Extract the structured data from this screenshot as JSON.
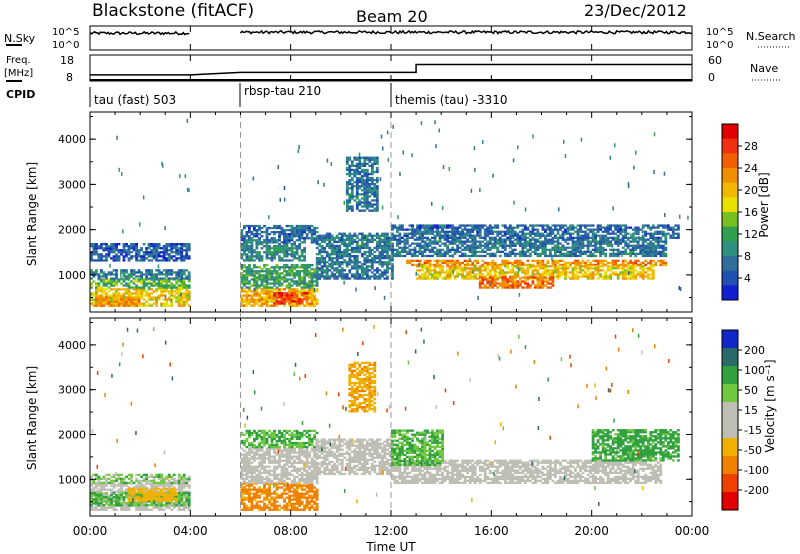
{
  "header": {
    "station": "Blackstone (fitACF)",
    "beam": "Beam 20",
    "date": "23/Dec/2012"
  },
  "nsky_panel": {
    "left_label": "N.Sky",
    "right_label": "N.Search",
    "left_ticks": [
      "10^5",
      "10^0"
    ],
    "right_ticks": [
      "10^5",
      "10^0"
    ]
  },
  "freq_panel": {
    "left_label_1": "Freq.",
    "left_label_2": "[MHz]",
    "left_ticks": [
      "18",
      "8"
    ],
    "right_label": "Nave",
    "right_ticks": [
      "60",
      "0"
    ]
  },
  "cpid_panel": {
    "label": "CPID",
    "modes": [
      "tau (fast) 503",
      "rbsp-tau 210",
      "themis (tau) -3310"
    ]
  },
  "power_panel": {
    "ylabel": "Slant Range [km]",
    "y_ticks": [
      "4000",
      "3000",
      "2000",
      "1000"
    ],
    "colorbar_label": "Power [dB]",
    "colorbar_ticks": [
      "28",
      "24",
      "20",
      "16",
      "12",
      "8",
      "4"
    ],
    "colorbar_colors": [
      "#e00000",
      "#f03010",
      "#f06000",
      "#f09000",
      "#f0b800",
      "#e8e000",
      "#78c020",
      "#30a050",
      "#309080",
      "#306e9c",
      "#2050b0",
      "#1020d0"
    ]
  },
  "velocity_panel": {
    "ylabel": "Slant Range [km]",
    "y_ticks": [
      "4000",
      "3000",
      "2000",
      "1000"
    ],
    "colorbar_label": "Velocity [m s⁻¹]",
    "colorbar_ticks": [
      "200",
      "100",
      "50",
      "15",
      "-15",
      "-50",
      "-100",
      "-200"
    ],
    "colorbar_colors": [
      "#1028c8",
      "#2a6a68",
      "#30a040",
      "#70c840",
      "#bebeb4",
      "#bebeb4",
      "#f0b000",
      "#f08000",
      "#f04000",
      "#e00000"
    ]
  },
  "time_axis": {
    "xlabel": "Time UT",
    "tick_labels": [
      "00:00",
      "04:00",
      "08:00",
      "12:00",
      "16:00",
      "20:00",
      "00:00"
    ]
  },
  "chart_data": {
    "type": "heatmap",
    "x_range_hours": [
      0,
      24
    ],
    "y_range_km": [
      180,
      4600
    ],
    "mode_changes_hours": [
      6,
      12
    ],
    "data_gap_hours": [
      4,
      6
    ],
    "nave_step_hour": 13,
    "freq_mhz": [
      {
        "start": 0,
        "end": 4,
        "value": 10
      },
      {
        "start": 6,
        "end": 24,
        "value": 10
      }
    ],
    "nave": [
      {
        "start": 0,
        "end": 4,
        "value": 14
      },
      {
        "start": 6,
        "end": 13,
        "value": 20
      },
      {
        "start": 13,
        "end": 24,
        "value": 38
      }
    ],
    "nsky_level": [
      {
        "start": 0,
        "end": 4,
        "value": 3.5
      },
      {
        "start": 6,
        "end": 24,
        "value": 3.7
      }
    ],
    "power_blocks": [
      {
        "t0": 0.0,
        "t1": 4.0,
        "r0": 300,
        "r1": 700,
        "db": 18
      },
      {
        "t0": 0.2,
        "t1": 2.0,
        "r0": 300,
        "r1": 500,
        "db": 22
      },
      {
        "t0": 0.0,
        "t1": 4.0,
        "r0": 700,
        "r1": 900,
        "db": 12
      },
      {
        "t0": 0.0,
        "t1": 4.0,
        "r0": 900,
        "r1": 1100,
        "db": 6
      },
      {
        "t0": 0.0,
        "t1": 4.0,
        "r0": 1300,
        "r1": 1700,
        "db": 4
      },
      {
        "t0": 6.0,
        "t1": 9.0,
        "r0": 300,
        "r1": 700,
        "db": 20
      },
      {
        "t0": 7.3,
        "t1": 8.6,
        "r0": 350,
        "r1": 600,
        "db": 27
      },
      {
        "t0": 6.0,
        "t1": 9.0,
        "r0": 700,
        "r1": 1200,
        "db": 10
      },
      {
        "t0": 6.0,
        "t1": 8.5,
        "r0": 1300,
        "r1": 1700,
        "db": 8
      },
      {
        "t0": 6.0,
        "t1": 9.0,
        "r0": 1700,
        "r1": 2100,
        "db": 5
      },
      {
        "t0": 9.0,
        "t1": 12.0,
        "r0": 900,
        "r1": 1900,
        "db": 6
      },
      {
        "t0": 10.2,
        "t1": 11.4,
        "r0": 2400,
        "r1": 3600,
        "db": 6
      },
      {
        "t0": 12.0,
        "t1": 23.0,
        "r0": 1400,
        "r1": 1800,
        "db": 6
      },
      {
        "t0": 12.6,
        "t1": 23.0,
        "r0": 1200,
        "r1": 1300,
        "db": 22
      },
      {
        "t0": 13.0,
        "t1": 22.5,
        "r0": 900,
        "r1": 1200,
        "db": 18
      },
      {
        "t0": 15.5,
        "t1": 18.5,
        "r0": 700,
        "r1": 950,
        "db": 24
      },
      {
        "t0": 12.0,
        "t1": 23.5,
        "r0": 1800,
        "r1": 2100,
        "db": 5
      }
    ],
    "velocity_blocks": [
      {
        "t0": 0.0,
        "t1": 4.0,
        "r0": 300,
        "r1": 900,
        "v": 0
      },
      {
        "t0": 0.0,
        "t1": 4.0,
        "r0": 400,
        "r1": 700,
        "v": 30
      },
      {
        "t0": 1.5,
        "t1": 3.5,
        "r0": 500,
        "r1": 800,
        "v": -30
      },
      {
        "t0": 0.0,
        "t1": 4.0,
        "r0": 900,
        "r1": 1100,
        "v": 20
      },
      {
        "t0": 6.0,
        "t1": 9.0,
        "r0": 300,
        "r1": 900,
        "v": -60
      },
      {
        "t0": 6.0,
        "t1": 9.0,
        "r0": 900,
        "r1": 1700,
        "v": 0
      },
      {
        "t0": 6.0,
        "t1": 9.0,
        "r0": 1700,
        "r1": 2100,
        "v": 30
      },
      {
        "t0": 9.0,
        "t1": 12.0,
        "r0": 1100,
        "r1": 1900,
        "v": 0
      },
      {
        "t0": 10.3,
        "t1": 11.3,
        "r0": 2500,
        "r1": 3600,
        "v": -40
      },
      {
        "t0": 12.0,
        "t1": 22.8,
        "r0": 900,
        "r1": 1400,
        "v": 0
      },
      {
        "t0": 12.0,
        "t1": 14.0,
        "r0": 1300,
        "r1": 2100,
        "v": 30
      },
      {
        "t0": 20.0,
        "t1": 23.5,
        "r0": 1400,
        "r1": 2100,
        "v": 40
      }
    ]
  }
}
